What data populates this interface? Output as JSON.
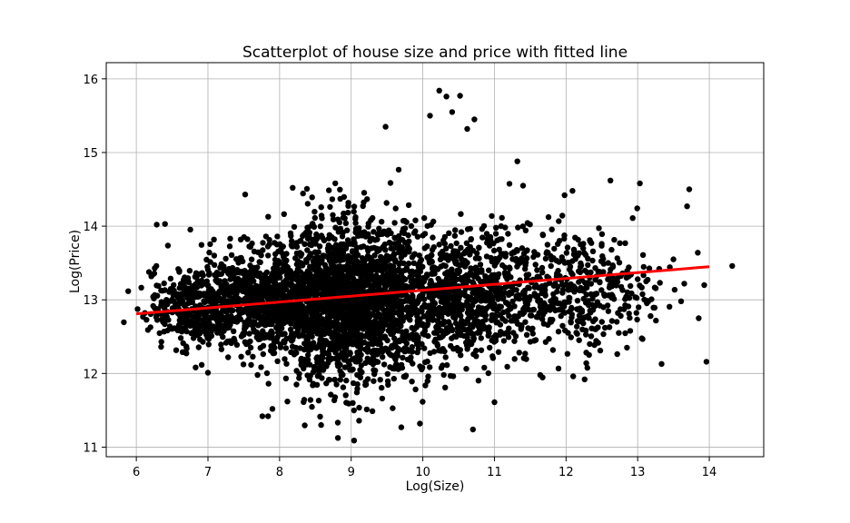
{
  "chart_data": {
    "type": "scatter",
    "title": "Scatterplot of house size and price with fitted line",
    "xlabel": "Log(Size)",
    "ylabel": "Log(Price)",
    "xlim": [
      5.58,
      14.76
    ],
    "ylim": [
      10.87,
      16.22
    ],
    "xticks": [
      6,
      7,
      8,
      9,
      10,
      11,
      12,
      13,
      14
    ],
    "yticks": [
      11,
      12,
      13,
      14,
      15,
      16
    ],
    "grid": true,
    "legend": "none",
    "marker_color": "#000000",
    "line_color": "#ff0000",
    "clusters": [
      {
        "x_center": 9.0,
        "y_center": 12.95,
        "x_spread": 0.55,
        "y_spread": 0.55,
        "count": 1800
      },
      {
        "x_center": 7.7,
        "y_center": 13.0,
        "x_spread": 0.6,
        "y_spread": 0.32,
        "count": 900
      },
      {
        "x_center": 10.6,
        "y_center": 13.05,
        "x_spread": 0.6,
        "y_spread": 0.45,
        "count": 900
      },
      {
        "x_center": 12.2,
        "y_center": 13.15,
        "x_spread": 0.5,
        "y_spread": 0.4,
        "count": 350
      },
      {
        "x_center": 6.8,
        "y_center": 12.85,
        "x_spread": 0.3,
        "y_spread": 0.25,
        "count": 250
      }
    ],
    "outliers": [
      {
        "x": 6.4,
        "y": 14.03
      },
      {
        "x": 6.28,
        "y": 13.46
      },
      {
        "x": 6.35,
        "y": 12.43
      },
      {
        "x": 7.0,
        "y": 12.01
      },
      {
        "x": 7.52,
        "y": 14.43
      },
      {
        "x": 10.23,
        "y": 15.84
      },
      {
        "x": 10.33,
        "y": 15.76
      },
      {
        "x": 10.52,
        "y": 15.77
      },
      {
        "x": 10.1,
        "y": 15.5
      },
      {
        "x": 10.72,
        "y": 15.45
      },
      {
        "x": 9.48,
        "y": 15.35
      },
      {
        "x": 10.41,
        "y": 15.55
      },
      {
        "x": 10.62,
        "y": 15.32
      },
      {
        "x": 11.32,
        "y": 14.88
      },
      {
        "x": 11.4,
        "y": 14.55
      },
      {
        "x": 11.98,
        "y": 14.42
      },
      {
        "x": 12.09,
        "y": 14.48
      },
      {
        "x": 12.62,
        "y": 14.62
      },
      {
        "x": 13.03,
        "y": 14.58
      },
      {
        "x": 12.93,
        "y": 14.11
      },
      {
        "x": 13.72,
        "y": 14.5
      },
      {
        "x": 13.69,
        "y": 14.27
      },
      {
        "x": 13.84,
        "y": 13.64
      },
      {
        "x": 14.32,
        "y": 13.46
      },
      {
        "x": 13.65,
        "y": 13.22
      },
      {
        "x": 13.93,
        "y": 13.2
      },
      {
        "x": 13.96,
        "y": 12.16
      },
      {
        "x": 13.15,
        "y": 12.98
      },
      {
        "x": 13.18,
        "y": 12.78
      },
      {
        "x": 12.85,
        "y": 12.35
      },
      {
        "x": 12.26,
        "y": 11.92
      },
      {
        "x": 11.64,
        "y": 11.98
      },
      {
        "x": 11.0,
        "y": 11.61
      },
      {
        "x": 10.7,
        "y": 11.24
      },
      {
        "x": 9.96,
        "y": 11.32
      },
      {
        "x": 9.7,
        "y": 11.27
      },
      {
        "x": 9.11,
        "y": 11.36
      },
      {
        "x": 8.58,
        "y": 11.3
      },
      {
        "x": 7.84,
        "y": 11.42
      },
      {
        "x": 7.76,
        "y": 11.42
      },
      {
        "x": 7.9,
        "y": 11.52
      },
      {
        "x": 12.33,
        "y": 12.4
      },
      {
        "x": 12.5,
        "y": 12.7
      },
      {
        "x": 13.3,
        "y": 13.42
      },
      {
        "x": 13.5,
        "y": 13.55
      }
    ],
    "fitted_line": {
      "x": [
        6.0,
        14.0
      ],
      "y": [
        12.81,
        13.45
      ]
    }
  }
}
